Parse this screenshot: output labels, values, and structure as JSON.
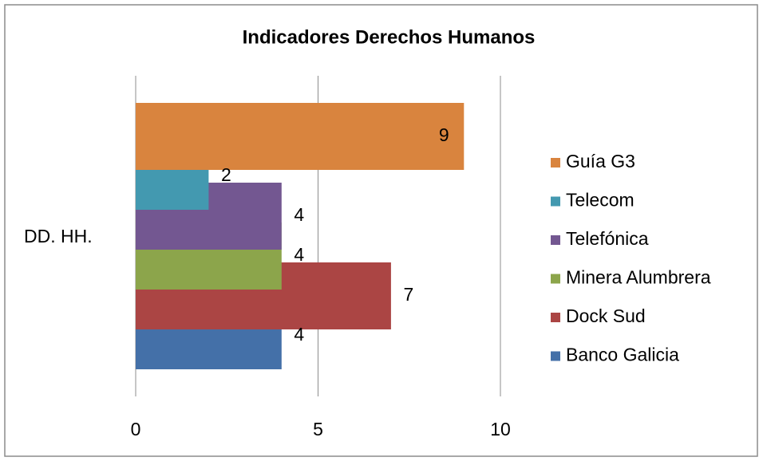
{
  "chart_data": {
    "type": "bar",
    "orientation": "horizontal",
    "title": "Indicadores Derechos Humanos",
    "categories": [
      "DD. HH."
    ],
    "series": [
      {
        "name": "Banco Galicia",
        "color": "#4470a8",
        "values": [
          4
        ]
      },
      {
        "name": "Dock Sud",
        "color": "#ab4544",
        "values": [
          7
        ]
      },
      {
        "name": "Minera Alumbrera",
        "color": "#8ca54b",
        "values": [
          4
        ]
      },
      {
        "name": "Telefónica",
        "color": "#735791",
        "values": [
          4
        ]
      },
      {
        "name": "Telecom",
        "color": "#4399b0",
        "values": [
          2
        ]
      },
      {
        "name": "Guía G3",
        "color": "#d9843e",
        "values": [
          9
        ]
      }
    ],
    "xlim": [
      0,
      10
    ],
    "xticks": [
      0,
      5,
      10
    ],
    "grid": true,
    "legend": "right"
  }
}
